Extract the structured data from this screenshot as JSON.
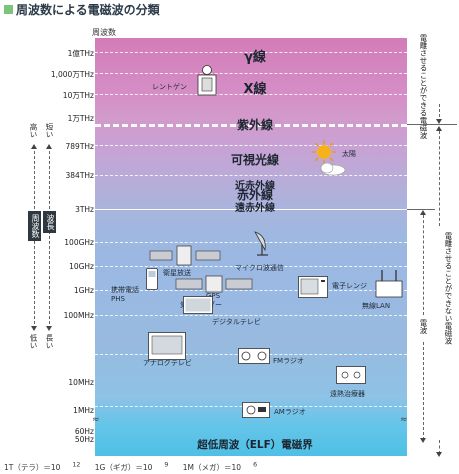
{
  "title": "周波数による電磁波の分類",
  "axis_header": "周波数",
  "frequencies": [
    "1億THz",
    "1,000万THz",
    "10万THz",
    "1万THz",
    "789THz",
    "384THz",
    "3THz",
    "100GHz",
    "10GHz",
    "1GHz",
    "100MHz",
    "10MHz",
    "1MHz",
    "60Hz",
    "50Hz"
  ],
  "bands": {
    "gamma": "γ線",
    "xray": "X線",
    "uv": "紫外線",
    "visible": "可視光線",
    "near_ir": "近赤外線",
    "ir": "赤外線",
    "far_ir": "遠赤外線",
    "elf": "超低周波（ELF）電磁界"
  },
  "items": {
    "xray_device": "レントゲン",
    "sun": "太陽",
    "satellite": "衛星放送",
    "microwave_comm": "マイクロ波通信",
    "mobile": "携帯電話\nPHS",
    "gps": "GPS",
    "weather_radar": "気象レーダー",
    "microwave_oven": "電子レンジ",
    "wlan": "無線LAN",
    "digital_tv": "デジタルテレビ",
    "analog_tv": "アナログテレビ",
    "fm_radio": "FMラジオ",
    "therapy": "遠熱治療器",
    "am_radio": "AMラジオ"
  },
  "left_axis": {
    "freq_high": "高い",
    "freq_low": "低い",
    "freq_label": "周波数",
    "wave_short": "短い",
    "wave_long": "長い",
    "wave_label": "波長"
  },
  "right_axis": {
    "ionizing": "電離させることができる電磁波",
    "non_ionizing": "電離させることができない電磁波",
    "radio": "電波"
  },
  "footer": [
    "1T（テラ）＝10",
    "12",
    "1G（ギガ）＝10",
    "9",
    "1M（メガ）＝10",
    "6"
  ],
  "colors": {
    "top": "#d27cb8",
    "middle": "#9db8e1",
    "bottom": "#4ec0e6",
    "title_mark": "#7cc47a"
  }
}
